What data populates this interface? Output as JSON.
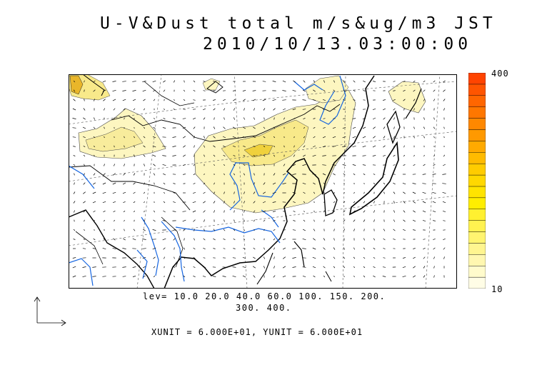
{
  "title": {
    "line1": "U-V&Dust total m/s&ug/m3 JST",
    "line2": "2010/10/13.03:00:00"
  },
  "colorbar": {
    "max_label": "400",
    "min_label": "10",
    "colors": [
      "#fffde6",
      "#fffbcc",
      "#fff7b0",
      "#fff590",
      "#fff470",
      "#fff250",
      "#fff030",
      "#ffee00",
      "#ffe400",
      "#ffd800",
      "#ffcc00",
      "#ffbb00",
      "#ffaa00",
      "#ff9900",
      "#ff8800",
      "#ff7700",
      "#ff6600",
      "#ff5500",
      "#ff4400"
    ]
  },
  "levels": {
    "line1": "lev= 10.0 20.0 40.0 60.0 100. 150. 200.",
    "line2": "300. 400."
  },
  "units_text": "XUNIT = 6.000E+01, YUNIT = 6.000E+01",
  "colors": {
    "dust_light": "#fdf6c0",
    "dust_mid": "#f8e98a",
    "dust_high": "#f0d13c",
    "river": "#1565e0",
    "coast": "#000000"
  },
  "icons": {
    "reference_vector": "reference-vector-icon"
  }
}
